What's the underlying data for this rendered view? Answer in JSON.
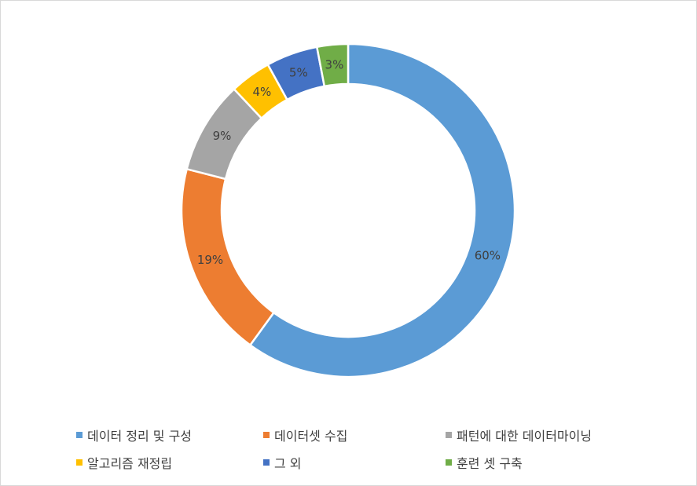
{
  "chart_data": {
    "type": "pie",
    "donut": true,
    "title": "",
    "legend_position": "bottom",
    "slices": [
      {
        "label": "데이터 정리 및 구성",
        "value": 60,
        "display": "60%",
        "color": "#5B9BD5"
      },
      {
        "label": "데이터셋 수집",
        "value": 19,
        "display": "19%",
        "color": "#ED7D31"
      },
      {
        "label": "패턴에 대한 데이터마이닝",
        "value": 9,
        "display": "9%",
        "color": "#A5A5A5"
      },
      {
        "label": "알고리즘 재정립",
        "value": 4,
        "display": "4%",
        "color": "#FFC000"
      },
      {
        "label": "그 외",
        "value": 5,
        "display": "5%",
        "color": "#4472C4"
      },
      {
        "label": "훈련 셋 구축",
        "value": 3,
        "display": "3%",
        "color": "#70AD47"
      }
    ]
  }
}
